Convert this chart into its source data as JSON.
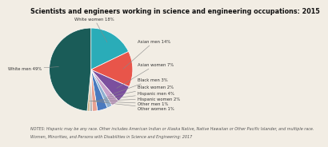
{
  "title": "Scientists and engineers working in science and engineering occupations: 2015",
  "slices": [
    {
      "label": "White women 18%",
      "value": 18,
      "color": "#2AACB8"
    },
    {
      "label": "Asian men 14%",
      "value": 14,
      "color": "#E8554A"
    },
    {
      "label": "Asian women 7%",
      "value": 7,
      "color": "#7B4F9E"
    },
    {
      "label": "Black men 3%",
      "value": 3,
      "color": "#C8A0C8"
    },
    {
      "label": "Black women 2%",
      "value": 2,
      "color": "#8FB0D0"
    },
    {
      "label": "Hispanic men 4%",
      "value": 4,
      "color": "#4A7ABF"
    },
    {
      "label": "Hispanic women 2%",
      "value": 2,
      "color": "#E8A090"
    },
    {
      "label": "Other men 1%",
      "value": 1,
      "color": "#B0B0B0"
    },
    {
      "label": "Other women 1%",
      "value": 1,
      "color": "#D0B890"
    },
    {
      "label": "White men 49%",
      "value": 49,
      "color": "#1A5C58"
    }
  ],
  "note_line1": "NOTES: Hispanic may be any race. Other includes American Indian or Alaska Native, Native Hawaiian or Other Pacific Islander, and multiple race.",
  "note_line2": "Women, Minorities, and Persons with Disabilities in Science and Engineering: 2017",
  "title_fontsize": 5.8,
  "label_fontsize": 3.8,
  "note_fontsize": 3.5,
  "background_color": "#F2EDE4"
}
